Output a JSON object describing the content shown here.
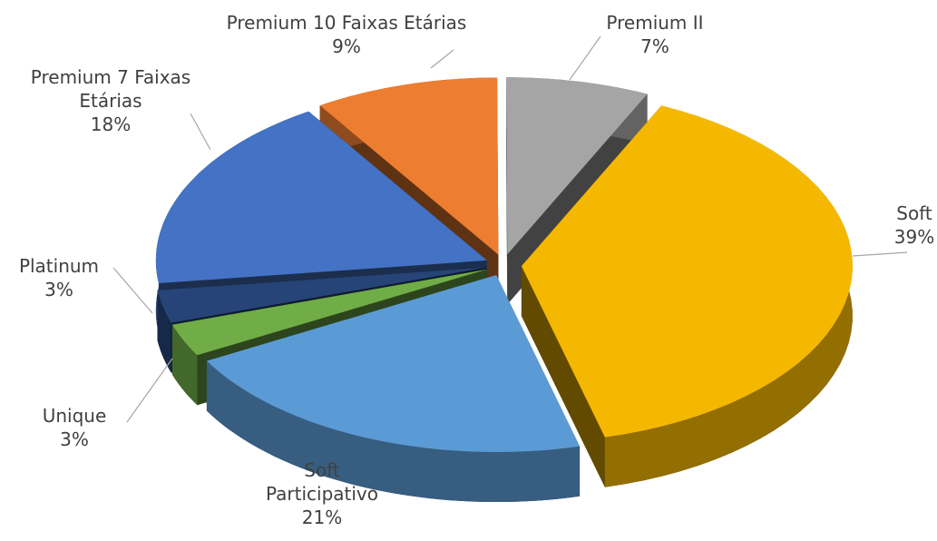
{
  "chart_data": {
    "type": "pie3d",
    "categories": [
      "Soft",
      "Soft Participativo",
      "Unique",
      "Platinum",
      "Premium 7 Faixas Etárias",
      "Premium 10 Faixas Etárias",
      "Premium II"
    ],
    "values": [
      39,
      21,
      3,
      3,
      18,
      9,
      7
    ],
    "value_labels": [
      "39%",
      "21%",
      "3%",
      "3%",
      "18%",
      "9%",
      "7%"
    ],
    "colors": [
      "#f5b800",
      "#5b9bd5",
      "#70ad47",
      "#264478",
      "#4472c4",
      "#ed7d31",
      "#a5a5a5"
    ]
  }
}
